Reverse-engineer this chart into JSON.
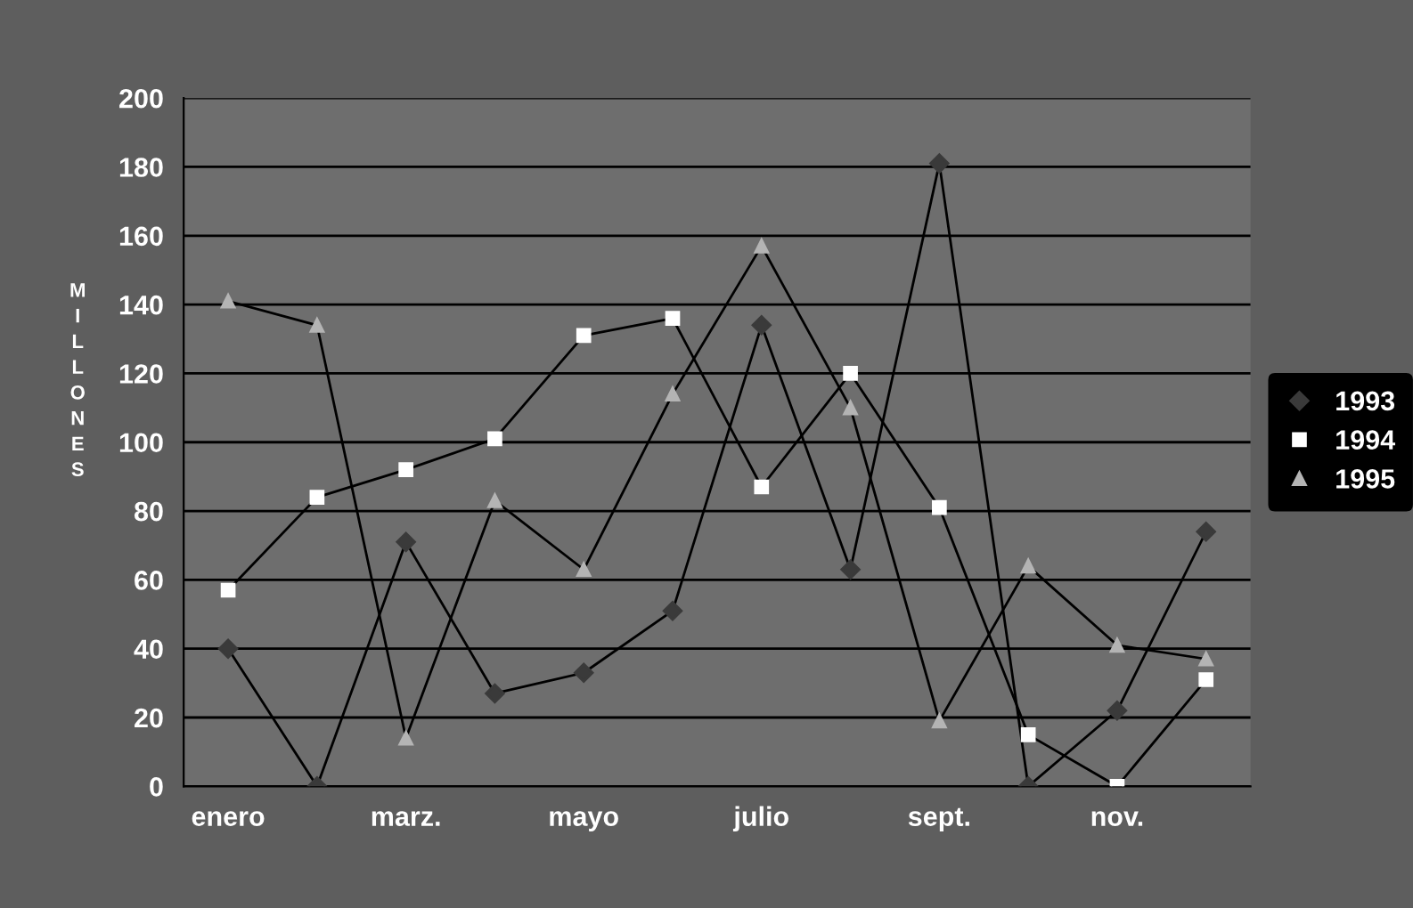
{
  "chart_data": {
    "type": "line",
    "ylabel": "MILLONES",
    "categories": [
      "enero",
      null,
      "marz.",
      null,
      "mayo",
      null,
      "julio",
      null,
      "sept.",
      null,
      "nov.",
      null
    ],
    "series": [
      {
        "name": "1993",
        "color": "#3a3a3a",
        "marker": "diamond",
        "values": [
          40,
          0,
          71,
          27,
          33,
          51,
          134,
          63,
          181,
          0,
          22,
          74
        ]
      },
      {
        "name": "1994",
        "color": "#ffffff",
        "marker": "square",
        "values": [
          57,
          84,
          92,
          101,
          131,
          136,
          87,
          120,
          81,
          15,
          0,
          31
        ]
      },
      {
        "name": "1995",
        "color": "#b4b4b4",
        "marker": "triangle",
        "values": [
          141,
          134,
          14,
          83,
          63,
          114,
          157,
          110,
          19,
          64,
          41,
          37
        ]
      }
    ],
    "ylim": [
      0,
      200
    ],
    "yticks": [
      0,
      20,
      40,
      60,
      80,
      100,
      120,
      140,
      160,
      180,
      200
    ],
    "grid": "y",
    "legend": "right"
  }
}
